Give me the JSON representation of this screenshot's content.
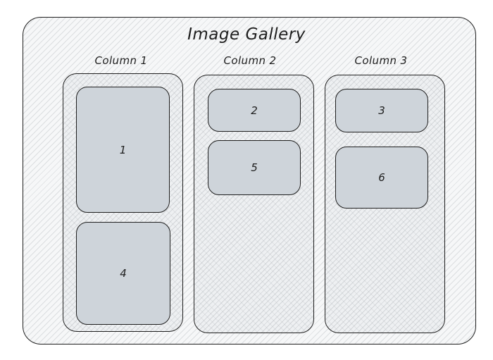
{
  "title": "Image Gallery",
  "columns": [
    {
      "label": "Column 1",
      "tiles": [
        "1",
        "4"
      ]
    },
    {
      "label": "Column 2",
      "tiles": [
        "2",
        "5"
      ]
    },
    {
      "label": "Column 3",
      "tiles": [
        "3",
        "6"
      ]
    }
  ]
}
